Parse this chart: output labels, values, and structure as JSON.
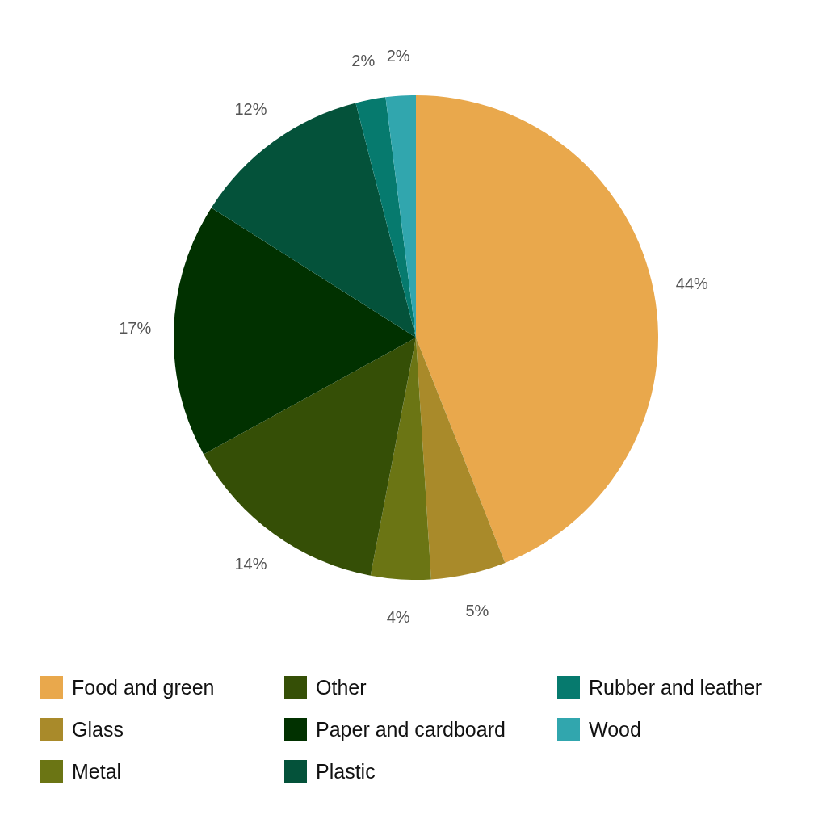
{
  "chart_data": {
    "type": "pie",
    "categories": [
      "Food and green",
      "Glass",
      "Metal",
      "Other",
      "Paper and cardboard",
      "Plastic",
      "Rubber and leather",
      "Wood"
    ],
    "values": [
      44,
      5,
      4,
      14,
      17,
      12,
      2,
      2
    ],
    "value_labels": [
      "44%",
      "5%",
      "4%",
      "14%",
      "17%",
      "12%",
      "2%",
      "2%"
    ],
    "colors": [
      "#e9a84c",
      "#a98a2a",
      "#6b7514",
      "#354f06",
      "#013100",
      "#04523a",
      "#067a6e",
      "#31a6ae"
    ],
    "legend": "bottom"
  }
}
